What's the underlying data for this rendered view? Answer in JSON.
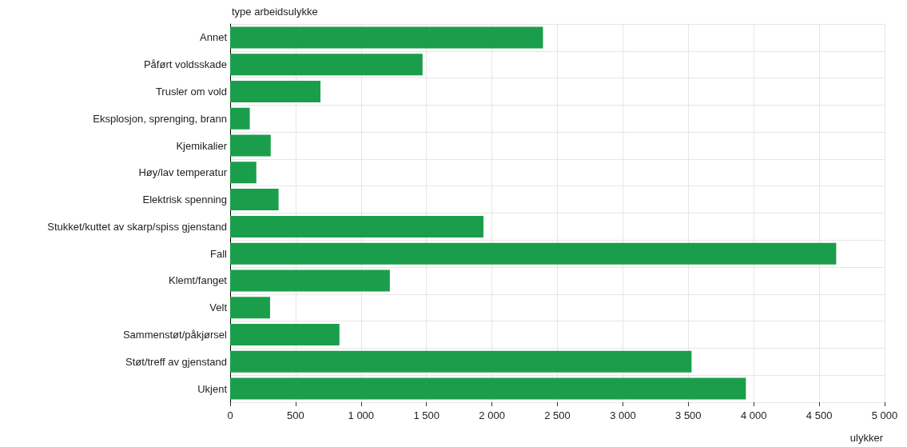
{
  "chart_data": {
    "type": "bar",
    "orientation": "horizontal",
    "ylabel": "type arbeidsulykke",
    "xlabel": "ulykker",
    "categories": [
      "Annet",
      "Påført voldsskade",
      "Trusler om vold",
      "Eksplosjon, sprenging, brann",
      "Kjemikalier",
      "Høy/lav temperatur",
      "Elektrisk spenning",
      "Stukket/kuttet av skarp/spiss gjenstand",
      "Fall",
      "Klemt/fanget",
      "Velt",
      "Sammenstøt/påkjørsel",
      "Støt/treff av gjenstand",
      "Ukjent"
    ],
    "values": [
      2390,
      1470,
      690,
      150,
      310,
      200,
      370,
      1935,
      4630,
      1220,
      305,
      835,
      3525,
      3940
    ],
    "color": "#1b9e4b",
    "xlim": [
      0,
      5000
    ],
    "xticks": [
      0,
      500,
      {
        "value": 1000,
        "label": "1 000"
      },
      {
        "value": 1500,
        "label": "1 500"
      },
      {
        "value": 2000,
        "label": "2 000"
      },
      {
        "value": 2500,
        "label": "2 500"
      },
      {
        "value": 3000,
        "label": "3 000"
      },
      {
        "value": 3500,
        "label": "3 500"
      },
      {
        "value": 4000,
        "label": "4 000"
      },
      {
        "value": 4500,
        "label": "4 500"
      },
      {
        "value": 5000,
        "label": "5 000"
      }
    ],
    "grid": true
  }
}
